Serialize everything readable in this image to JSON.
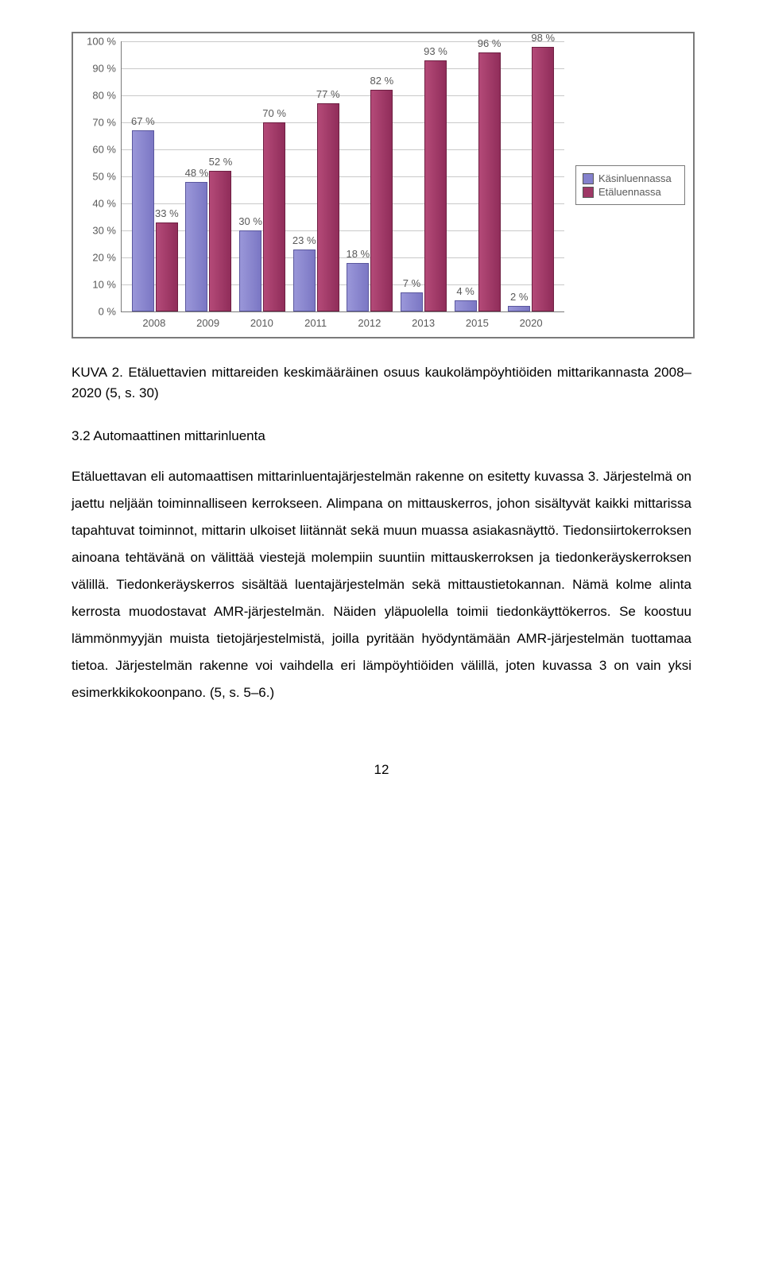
{
  "chart": {
    "type": "bar",
    "categories": [
      "2008",
      "2009",
      "2010",
      "2011",
      "2012",
      "2013",
      "2015",
      "2020"
    ],
    "series_a": {
      "label": "Käsinluennassa",
      "bar_color": "#8481cd",
      "border_color": "#5a579e",
      "values": [
        67,
        48,
        30,
        23,
        18,
        7,
        4,
        2
      ],
      "labels": [
        "67 %",
        "48 %",
        "30 %",
        "23 %",
        "18 %",
        "7 %",
        "4 %",
        "2 %"
      ]
    },
    "series_b": {
      "label": "Etäluennassa",
      "bar_color": "#9e3866",
      "border_color": "#6e1f42",
      "values": [
        33,
        52,
        70,
        77,
        82,
        93,
        96,
        98
      ],
      "labels": [
        "33 %",
        "52 %",
        "70 %",
        "77 %",
        "82 %",
        "93 %",
        "96 %",
        "98 %"
      ]
    },
    "ylim_max": 100,
    "yticks": [
      0,
      10,
      20,
      30,
      40,
      50,
      60,
      70,
      80,
      90,
      100
    ],
    "ytick_labels": [
      "0 %",
      "10 %",
      "20 %",
      "30 %",
      "40 %",
      "50 %",
      "60 %",
      "70 %",
      "80 %",
      "90 %",
      "100 %"
    ],
    "grid_color": "#c9c9c9",
    "axis_color": "#7a7a7a",
    "label_color": "#595959",
    "label_fontsize": 13,
    "background_color": "#ffffff"
  },
  "caption": "KUVA 2. Etäluettavien mittareiden keskimääräinen osuus kaukolämpöyhtiöiden mittarikannasta 2008–2020 (5, s. 30)",
  "section_title": "3.2 Automaattinen mittarinluenta",
  "body_text": "Etäluettavan eli automaattisen mittarinluentajärjestelmän rakenne on esitetty kuvassa 3. Järjestelmä on jaettu neljään toiminnalliseen kerrokseen. Alimpana on mittauskerros, johon sisältyvät kaikki mittarissa tapahtuvat toiminnot, mittarin ulkoiset liitännät sekä muun muassa asiakasnäyttö. Tiedonsiirtokerroksen ainoana tehtävänä on välittää viestejä molempiin suuntiin mittauskerroksen ja tiedonkeräyskerroksen välillä. Tiedonkeräyskerros sisältää luentajärjestelmän sekä mittaustietokannan. Nämä kolme alinta kerrosta muodostavat AMR-järjestelmän. Näiden yläpuolella toimii tiedonkäyttökerros. Se koostuu lämmönmyyjän muista tietojärjestelmistä, joilla pyritään hyödyntämään AMR-järjestelmän tuottamaa tietoa. Järjestelmän rakenne voi vaihdella eri lämpöyhtiöiden välillä, joten kuvassa 3 on vain yksi esimerkkikokoonpano. (5, s. 5–6.)",
  "page_number": "12"
}
